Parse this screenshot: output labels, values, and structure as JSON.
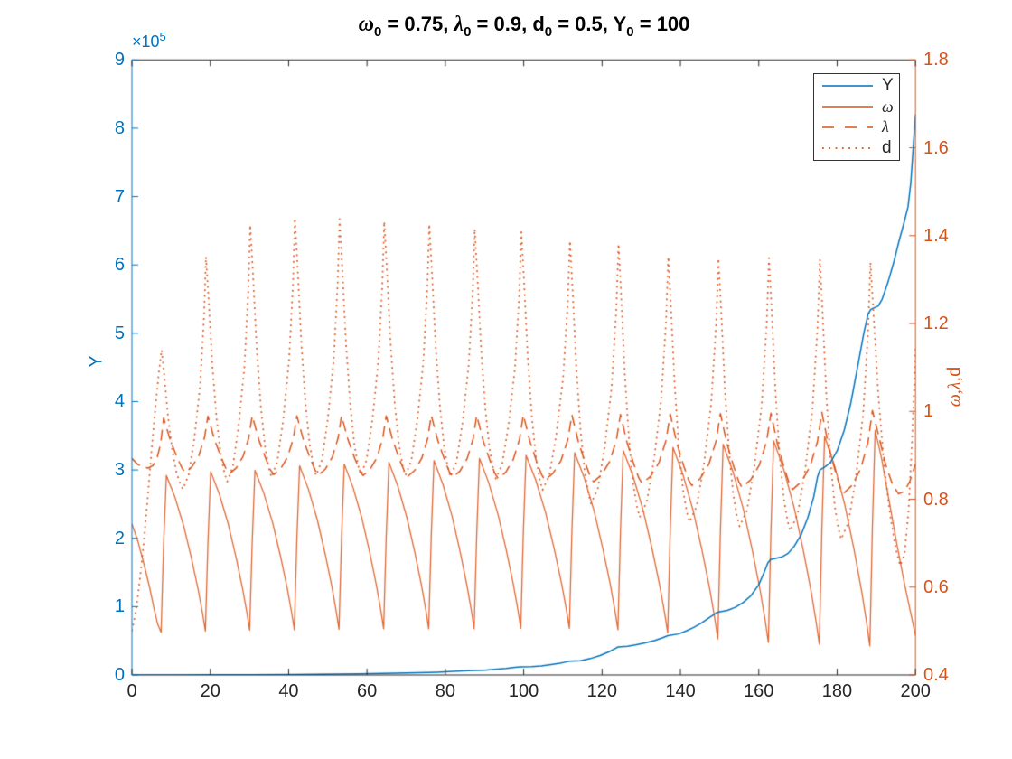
{
  "title": {
    "plain": "ω0 = 0.75, λ0 = 0.9, d0 = 0.5, Y0 = 100",
    "segments": [
      {
        "text": "ω",
        "style": "greek"
      },
      {
        "text": "0",
        "style": "sub"
      },
      {
        "text": " = 0.75, ",
        "style": "plain"
      },
      {
        "text": "λ",
        "style": "greek"
      },
      {
        "text": "0",
        "style": "sub"
      },
      {
        "text": " = 0.9, ",
        "style": "plain"
      },
      {
        "text": "d",
        "style": "plain"
      },
      {
        "text": "0",
        "style": "sub"
      },
      {
        "text": " = 0.5, ",
        "style": "plain"
      },
      {
        "text": "Y",
        "style": "plain"
      },
      {
        "text": "0",
        "style": "sub"
      },
      {
        "text": " = 100",
        "style": "plain"
      }
    ]
  },
  "axes": {
    "x": {
      "range": [
        0,
        200
      ],
      "tick_labels": [
        "0",
        "20",
        "40",
        "60",
        "80",
        "100",
        "120",
        "140",
        "160",
        "180",
        "200"
      ],
      "color": "#262626"
    },
    "y_left": {
      "label": "Y",
      "color": "#0072BD",
      "range": [
        0,
        9
      ],
      "multiplier_base": "×10",
      "multiplier_exp": "5",
      "tick_labels": [
        "0",
        "1",
        "2",
        "3",
        "4",
        "5",
        "6",
        "7",
        "8",
        "9"
      ]
    },
    "y_right": {
      "label_greek": "ω,λ",
      "label_rest": ",d",
      "color": "#D95319",
      "range": [
        0.4,
        1.8
      ],
      "tick_labels": [
        "0.4",
        "0.6",
        "0.8",
        "1",
        "1.2",
        "1.4",
        "1.6",
        "1.8"
      ]
    }
  },
  "legend": {
    "items": [
      {
        "label": "Y",
        "color": "#0072BD",
        "line": "solid"
      },
      {
        "label": "ω",
        "color": "#D95319",
        "line": "solid"
      },
      {
        "label": "λ",
        "color": "#D95319",
        "line": "dashed"
      },
      {
        "label": "d",
        "color": "#D95319",
        "line": "dotted"
      }
    ]
  },
  "chart_data": {
    "type": "line",
    "title": "ω0 = 0.75, λ0 = 0.9, d0 = 0.5, Y0 = 100",
    "xlabel": "",
    "x_range": [
      0,
      200
    ],
    "y_left_label": "Y",
    "y_left_range_1e5": [
      0,
      9
    ],
    "y_right_label": "ω,λ,d",
    "y_right_range": [
      0.4,
      1.8
    ],
    "legend_position": "top-right",
    "grid": false,
    "series_meta": [
      {
        "name": "Y",
        "axis": "left",
        "style": "solid",
        "color": "#0072BD"
      },
      {
        "name": "ω",
        "axis": "right",
        "style": "solid",
        "color": "#D95319"
      },
      {
        "name": "λ",
        "axis": "right",
        "style": "dashed",
        "color": "#D95319"
      },
      {
        "name": "d",
        "axis": "right",
        "style": "dotted",
        "color": "#D95319"
      }
    ],
    "Y_points_1e5": [
      [
        0,
        0.001
      ],
      [
        10,
        0.0015
      ],
      [
        20,
        0.0024
      ],
      [
        30,
        0.004
      ],
      [
        41.4,
        0.007
      ],
      [
        47,
        0.009
      ],
      [
        52.9,
        0.0125
      ],
      [
        58,
        0.016
      ],
      [
        64.2,
        0.022
      ],
      [
        70,
        0.03
      ],
      [
        75.7,
        0.038
      ],
      [
        78,
        0.041
      ],
      [
        81,
        0.048
      ],
      [
        84.5,
        0.058
      ],
      [
        87.4,
        0.067
      ],
      [
        90,
        0.071
      ],
      [
        92.5,
        0.082
      ],
      [
        95.5,
        0.096
      ],
      [
        97.8,
        0.112
      ],
      [
        99.3,
        0.118
      ],
      [
        102,
        0.123
      ],
      [
        104.5,
        0.133
      ],
      [
        107,
        0.152
      ],
      [
        109.3,
        0.172
      ],
      [
        110.8,
        0.19
      ],
      [
        111.7,
        0.2
      ],
      [
        114.5,
        0.208
      ],
      [
        117,
        0.24
      ],
      [
        119.5,
        0.285
      ],
      [
        121.8,
        0.34
      ],
      [
        123.3,
        0.385
      ],
      [
        124.1,
        0.41
      ],
      [
        126.5,
        0.42
      ],
      [
        128.5,
        0.44
      ],
      [
        131,
        0.47
      ],
      [
        133.5,
        0.505
      ],
      [
        135.5,
        0.545
      ],
      [
        136.8,
        0.575
      ],
      [
        139.5,
        0.6
      ],
      [
        141.5,
        0.645
      ],
      [
        143.5,
        0.7
      ],
      [
        145.5,
        0.765
      ],
      [
        147.5,
        0.845
      ],
      [
        149.5,
        0.92
      ],
      [
        152,
        0.945
      ],
      [
        154,
        0.99
      ],
      [
        156,
        1.06
      ],
      [
        158,
        1.16
      ],
      [
        160,
        1.32
      ],
      [
        161.5,
        1.52
      ],
      [
        162.3,
        1.64
      ],
      [
        163,
        1.69
      ],
      [
        164.5,
        1.71
      ],
      [
        166,
        1.73
      ],
      [
        167.5,
        1.78
      ],
      [
        169,
        1.88
      ],
      [
        170.8,
        2.05
      ],
      [
        172.5,
        2.3
      ],
      [
        174,
        2.6
      ],
      [
        175,
        2.9
      ],
      [
        175.6,
        3.0
      ],
      [
        177,
        3.05
      ],
      [
        178.3,
        3.11
      ],
      [
        180,
        3.28
      ],
      [
        181.8,
        3.58
      ],
      [
        183.5,
        3.98
      ],
      [
        185.2,
        4.5
      ],
      [
        186.8,
        5.0
      ],
      [
        187.9,
        5.28
      ],
      [
        188.6,
        5.35
      ],
      [
        190.5,
        5.4
      ],
      [
        191.5,
        5.5
      ],
      [
        193,
        5.75
      ],
      [
        194.5,
        6.05
      ],
      [
        195.8,
        6.35
      ],
      [
        197,
        6.6
      ],
      [
        198.1,
        6.85
      ],
      [
        198.8,
        7.2
      ],
      [
        199.4,
        7.7
      ],
      [
        200,
        8.2
      ]
    ],
    "cycle_fields": [
      "t_d_peak",
      "omega_trough",
      "omega_peak",
      "lambda_peak",
      "lambda_trough",
      "d_peak",
      "d_trough"
    ],
    "cycles": [
      [
        7.6,
        0.497,
        0.854,
        0.985,
        0.861,
        1.14,
        0.823
      ],
      [
        18.9,
        0.5,
        0.863,
        0.989,
        0.858,
        1.352,
        0.84
      ],
      [
        30.2,
        0.502,
        0.866,
        0.99,
        0.856,
        1.424,
        0.85
      ],
      [
        41.6,
        0.503,
        0.876,
        0.99,
        0.855,
        1.44,
        0.854
      ],
      [
        53.0,
        0.504,
        0.88,
        0.99,
        0.854,
        1.438,
        0.855
      ],
      [
        64.4,
        0.505,
        0.884,
        0.99,
        0.852,
        1.432,
        0.854
      ],
      [
        75.9,
        0.505,
        0.888,
        0.991,
        0.85,
        1.426,
        0.851
      ],
      [
        87.5,
        0.505,
        0.893,
        0.991,
        0.847,
        1.415,
        0.847
      ],
      [
        99.4,
        0.506,
        0.9,
        0.992,
        0.844,
        1.408,
        0.821
      ],
      [
        111.8,
        0.506,
        0.906,
        0.992,
        0.84,
        1.388,
        0.79
      ],
      [
        124.2,
        0.503,
        0.911,
        0.993,
        0.836,
        1.381,
        0.759
      ],
      [
        136.9,
        0.496,
        0.918,
        0.994,
        0.831,
        1.352,
        0.748
      ],
      [
        149.7,
        0.482,
        0.925,
        0.995,
        0.827,
        1.348,
        0.738
      ],
      [
        162.6,
        0.474,
        0.933,
        0.996,
        0.822,
        1.349,
        0.728
      ],
      [
        175.6,
        0.47,
        0.943,
        0.998,
        0.813,
        1.346,
        0.709
      ],
      [
        188.5,
        0.466,
        0.957,
        1.002,
        0.81,
        1.339,
        0.648
      ]
    ],
    "start_points": {
      "omega": [
        [
          0,
          0.744
        ],
        [
          1.5,
          0.705
        ],
        [
          3,
          0.655
        ],
        [
          4.5,
          0.6
        ],
        [
          5.6,
          0.553
        ],
        [
          6.6,
          0.515
        ],
        [
          7.45,
          0.497
        ],
        [
          8.1,
          0.7
        ]
      ],
      "lambda": [
        [
          0,
          0.893
        ],
        [
          1.5,
          0.879
        ],
        [
          3,
          0.873
        ],
        [
          4.2,
          0.871
        ],
        [
          5.4,
          0.877
        ],
        [
          6.4,
          0.893
        ],
        [
          7.3,
          0.925
        ],
        [
          7.8,
          0.962
        ]
      ],
      "d": [
        [
          0,
          0.5
        ],
        [
          1,
          0.545
        ],
        [
          2,
          0.615
        ],
        [
          3,
          0.7
        ],
        [
          4,
          0.8
        ],
        [
          5,
          0.91
        ],
        [
          6,
          1.01
        ],
        [
          6.9,
          1.09
        ]
      ]
    },
    "tail_points": {
      "omega": [
        [
          191.3,
          0.895
        ],
        [
          193.2,
          0.8
        ],
        [
          195.2,
          0.7
        ],
        [
          197.2,
          0.607
        ],
        [
          198.8,
          0.54
        ],
        [
          200,
          0.49
        ]
      ],
      "lambda": [
        [
          190.6,
          0.945
        ],
        [
          192.4,
          0.878
        ],
        [
          194.2,
          0.832
        ],
        [
          195.7,
          0.812
        ],
        [
          197.2,
          0.818
        ],
        [
          198.6,
          0.842
        ],
        [
          200,
          0.88
        ]
      ],
      "d": [
        [
          189.3,
          1.22
        ],
        [
          190.5,
          1.04
        ],
        [
          192,
          0.875
        ],
        [
          193.6,
          0.76
        ],
        [
          195,
          0.685
        ],
        [
          196.1,
          0.649
        ],
        [
          197.2,
          0.675
        ],
        [
          198.2,
          0.77
        ],
        [
          199.1,
          0.93
        ],
        [
          199.7,
          1.06
        ],
        [
          200,
          1.15
        ]
      ]
    }
  }
}
